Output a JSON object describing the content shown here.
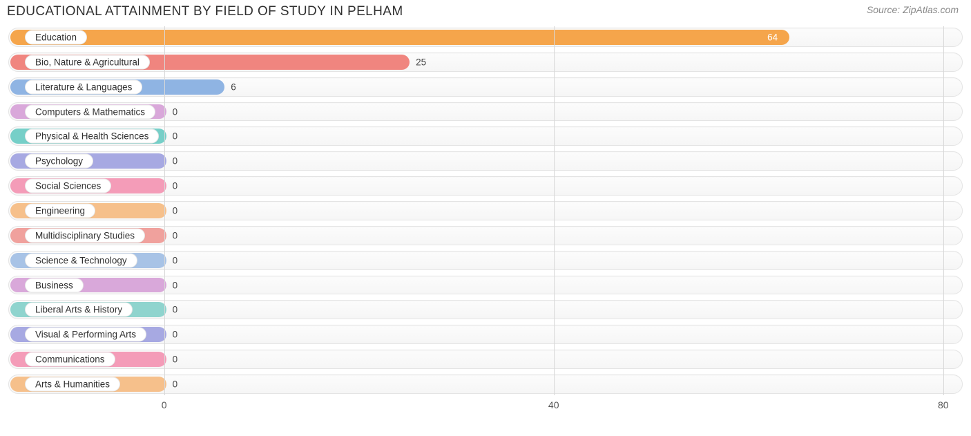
{
  "title": "EDUCATIONAL ATTAINMENT BY FIELD OF STUDY IN PELHAM",
  "source": "Source: ZipAtlas.com",
  "chart": {
    "type": "bar-horizontal",
    "x_axis": {
      "ticks": [
        0,
        40,
        80
      ],
      "min": -16,
      "max": 82
    },
    "track_border_color": "#e4e4e4",
    "track_bg_top": "#fcfcfc",
    "track_bg_bottom": "#f6f6f6",
    "grid_color": "#d8d8d8",
    "background_color": "#ffffff",
    "title_color": "#303030",
    "tick_color": "#555555",
    "label_fontsize": 13.5,
    "title_fontsize": 19,
    "bar_origin": -16,
    "rows": [
      {
        "label": "Education",
        "value": 64,
        "color": "#f5a54b",
        "value_inside": true
      },
      {
        "label": "Bio, Nature & Agricultural",
        "value": 25,
        "color": "#f0857f",
        "value_inside": false
      },
      {
        "label": "Literature & Languages",
        "value": 6,
        "color": "#8fb4e3",
        "value_inside": false
      },
      {
        "label": "Computers & Mathematics",
        "value": 0,
        "color": "#d9a8da",
        "value_inside": false
      },
      {
        "label": "Physical & Health Sciences",
        "value": 0,
        "color": "#76cfc8",
        "value_inside": false
      },
      {
        "label": "Psychology",
        "value": 0,
        "color": "#a7a9e2",
        "value_inside": false
      },
      {
        "label": "Social Sciences",
        "value": 0,
        "color": "#f49cb8",
        "value_inside": false
      },
      {
        "label": "Engineering",
        "value": 0,
        "color": "#f6c08b",
        "value_inside": false
      },
      {
        "label": "Multidisciplinary Studies",
        "value": 0,
        "color": "#f0a19d",
        "value_inside": false
      },
      {
        "label": "Science & Technology",
        "value": 0,
        "color": "#a8c3e6",
        "value_inside": false
      },
      {
        "label": "Business",
        "value": 0,
        "color": "#d9a8da",
        "value_inside": false
      },
      {
        "label": "Liberal Arts & History",
        "value": 0,
        "color": "#8fd4ce",
        "value_inside": false
      },
      {
        "label": "Visual & Performing Arts",
        "value": 0,
        "color": "#a7a9e2",
        "value_inside": false
      },
      {
        "label": "Communications",
        "value": 0,
        "color": "#f49cb8",
        "value_inside": false
      },
      {
        "label": "Arts & Humanities",
        "value": 0,
        "color": "#f6c08b",
        "value_inside": false
      }
    ]
  }
}
